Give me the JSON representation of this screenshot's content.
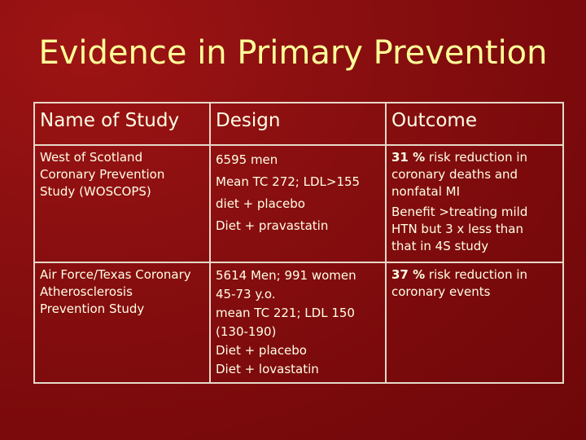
{
  "slide": {
    "title": "Evidence in Primary Prevention"
  },
  "table": {
    "headers": [
      "Name of Study",
      "Design",
      "Outcome"
    ],
    "rows": [
      {
        "study": [
          "West of Scotland",
          "Coronary Prevention",
          "Study (WOSCOPS)"
        ],
        "design": [
          "6595 men",
          "Mean TC 272; LDL>155",
          "diet + placebo",
          "Diet + pravastatin"
        ],
        "outcome_bold": "31 %",
        "outcome": [
          " risk reduction in",
          "coronary deaths and",
          "nonfatal MI",
          "Benefit >treating mild",
          "HTN but 3 x less than",
          "that in 4S study"
        ]
      },
      {
        "study": [
          "Air Force/Texas Coronary",
          "Atherosclerosis",
          "Prevention Study"
        ],
        "design": [
          "5614 Men; 991 women",
          "45-73 y.o.",
          "mean TC 221; LDL 150",
          "(130-190)",
          "Diet + placebo",
          "Diet + lovastatin"
        ],
        "outcome_bold": "37 %",
        "outcome": [
          " risk reduction in",
          "coronary events"
        ]
      }
    ]
  }
}
